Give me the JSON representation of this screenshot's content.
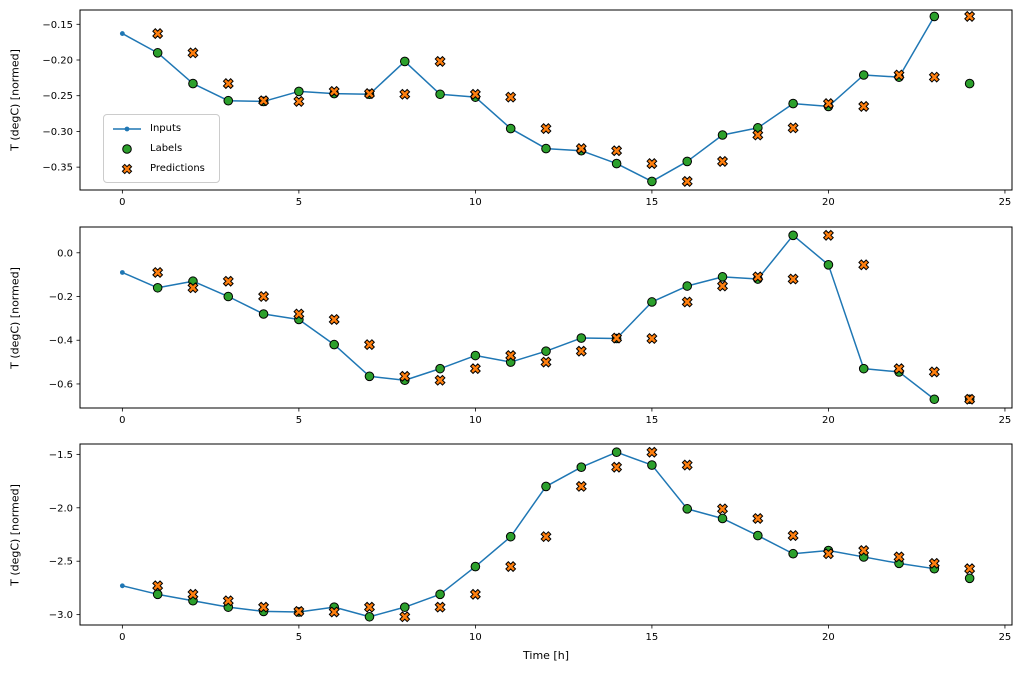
{
  "figure": {
    "xlabel": "Time [h]",
    "legend": [
      "Inputs",
      "Labels",
      "Predictions"
    ],
    "colors": {
      "inputs": "#1f77b4",
      "labels": "#2ca02c",
      "predictions": "#ff7f0e",
      "marker_edge": "#000000",
      "axes": "#000000",
      "background": "#ffffff"
    }
  },
  "chart_data": [
    {
      "type": "line+scatter",
      "ylabel": "T (degC) [normed]",
      "xlim": [
        -1.2,
        25.2
      ],
      "ylim": [
        -0.382,
        -0.13
      ],
      "xticks": [
        0,
        5,
        10,
        15,
        20,
        25
      ],
      "xtick_labels": [
        "0",
        "5",
        "10",
        "15",
        "20",
        "25"
      ],
      "yticks": [
        -0.15,
        -0.2,
        -0.25,
        -0.3,
        -0.35
      ],
      "ytick_labels": [
        "−0.15",
        "−0.20",
        "−0.25",
        "−0.30",
        "−0.35"
      ],
      "series": [
        {
          "name": "Inputs",
          "marker": "dot-line",
          "x": [
            0,
            1,
            2,
            3,
            4,
            5,
            6,
            7,
            8,
            9,
            10,
            11,
            12,
            13,
            14,
            15,
            16,
            17,
            18,
            19,
            20,
            21,
            22,
            23
          ],
          "y": [
            -0.163,
            -0.19,
            -0.233,
            -0.257,
            -0.258,
            -0.244,
            -0.247,
            -0.248,
            -0.202,
            -0.248,
            -0.252,
            -0.296,
            -0.324,
            -0.327,
            -0.345,
            -0.37,
            -0.342,
            -0.305,
            -0.295,
            -0.261,
            -0.265,
            -0.221,
            -0.224,
            -0.139
          ]
        },
        {
          "name": "Labels",
          "marker": "circle",
          "x": [
            1,
            2,
            3,
            4,
            5,
            6,
            7,
            8,
            9,
            10,
            11,
            12,
            13,
            14,
            15,
            16,
            17,
            18,
            19,
            20,
            21,
            22,
            23,
            24
          ],
          "y": [
            -0.19,
            -0.233,
            -0.257,
            -0.258,
            -0.244,
            -0.247,
            -0.248,
            -0.202,
            -0.248,
            -0.252,
            -0.296,
            -0.324,
            -0.327,
            -0.345,
            -0.37,
            -0.342,
            -0.305,
            -0.295,
            -0.261,
            -0.265,
            -0.221,
            -0.224,
            -0.139,
            -0.233
          ]
        },
        {
          "name": "Predictions",
          "marker": "X",
          "x": [
            1,
            2,
            3,
            4,
            5,
            6,
            7,
            8,
            9,
            10,
            11,
            12,
            13,
            14,
            15,
            16,
            17,
            18,
            19,
            20,
            21,
            22,
            23,
            24
          ],
          "y": [
            -0.163,
            -0.19,
            -0.233,
            -0.257,
            -0.258,
            -0.244,
            -0.247,
            -0.248,
            -0.202,
            -0.248,
            -0.252,
            -0.296,
            -0.324,
            -0.327,
            -0.345,
            -0.37,
            -0.342,
            -0.305,
            -0.295,
            -0.261,
            -0.265,
            -0.221,
            -0.224,
            -0.139
          ]
        }
      ]
    },
    {
      "type": "line+scatter",
      "ylabel": "T (degC) [normed]",
      "xlim": [
        -1.2,
        25.2
      ],
      "ylim": [
        -0.71,
        0.118
      ],
      "xticks": [
        0,
        5,
        10,
        15,
        20,
        25
      ],
      "xtick_labels": [
        "0",
        "5",
        "10",
        "15",
        "20",
        "25"
      ],
      "yticks": [
        0.0,
        -0.2,
        -0.4,
        -0.6
      ],
      "ytick_labels": [
        "0.0",
        "−0.2",
        "−0.4",
        "−0.6"
      ],
      "series": [
        {
          "name": "Inputs",
          "marker": "dot-line",
          "x": [
            0,
            1,
            2,
            3,
            4,
            5,
            6,
            7,
            8,
            9,
            10,
            11,
            12,
            13,
            14,
            15,
            16,
            17,
            18,
            19,
            20,
            21,
            22,
            23
          ],
          "y": [
            -0.09,
            -0.16,
            -0.13,
            -0.2,
            -0.28,
            -0.305,
            -0.42,
            -0.565,
            -0.583,
            -0.53,
            -0.47,
            -0.5,
            -0.45,
            -0.39,
            -0.392,
            -0.225,
            -0.152,
            -0.11,
            -0.12,
            0.08,
            -0.055,
            -0.53,
            -0.545,
            -0.67
          ]
        },
        {
          "name": "Labels",
          "marker": "circle",
          "x": [
            1,
            2,
            3,
            4,
            5,
            6,
            7,
            8,
            9,
            10,
            11,
            12,
            13,
            14,
            15,
            16,
            17,
            18,
            19,
            20,
            21,
            22,
            23,
            24
          ],
          "y": [
            -0.16,
            -0.13,
            -0.2,
            -0.28,
            -0.305,
            -0.42,
            -0.565,
            -0.583,
            -0.53,
            -0.47,
            -0.5,
            -0.45,
            -0.39,
            -0.392,
            -0.225,
            -0.152,
            -0.11,
            -0.12,
            0.08,
            -0.055,
            -0.53,
            -0.545,
            -0.67,
            -0.67
          ]
        },
        {
          "name": "Predictions",
          "marker": "X",
          "x": [
            1,
            2,
            3,
            4,
            5,
            6,
            7,
            8,
            9,
            10,
            11,
            12,
            13,
            14,
            15,
            16,
            17,
            18,
            19,
            20,
            21,
            22,
            23,
            24
          ],
          "y": [
            -0.09,
            -0.16,
            -0.13,
            -0.2,
            -0.28,
            -0.305,
            -0.42,
            -0.565,
            -0.583,
            -0.53,
            -0.47,
            -0.5,
            -0.45,
            -0.39,
            -0.392,
            -0.225,
            -0.152,
            -0.11,
            -0.12,
            0.08,
            -0.055,
            -0.53,
            -0.545,
            -0.67
          ]
        }
      ]
    },
    {
      "type": "line+scatter",
      "ylabel": "T (degC) [normed]",
      "xlim": [
        -1.2,
        25.2
      ],
      "ylim": [
        -3.097,
        -1.403
      ],
      "xticks": [
        0,
        5,
        10,
        15,
        20,
        25
      ],
      "xtick_labels": [
        "0",
        "5",
        "10",
        "15",
        "20",
        "25"
      ],
      "yticks": [
        -1.5,
        -2.0,
        -2.5,
        -3.0
      ],
      "ytick_labels": [
        "−1.5",
        "−2.0",
        "−2.5",
        "−3.0"
      ],
      "series": [
        {
          "name": "Inputs",
          "marker": "dot-line",
          "x": [
            0,
            1,
            2,
            3,
            4,
            5,
            6,
            7,
            8,
            9,
            10,
            11,
            12,
            13,
            14,
            15,
            16,
            17,
            18,
            19,
            20,
            21,
            22,
            23
          ],
          "y": [
            -2.73,
            -2.81,
            -2.87,
            -2.93,
            -2.97,
            -2.975,
            -2.93,
            -3.02,
            -2.93,
            -2.81,
            -2.55,
            -2.27,
            -1.8,
            -1.62,
            -1.48,
            -1.6,
            -2.01,
            -2.1,
            -2.26,
            -2.43,
            -2.4,
            -2.46,
            -2.52,
            -2.57
          ]
        },
        {
          "name": "Labels",
          "marker": "circle",
          "x": [
            1,
            2,
            3,
            4,
            5,
            6,
            7,
            8,
            9,
            10,
            11,
            12,
            13,
            14,
            15,
            16,
            17,
            18,
            19,
            20,
            21,
            22,
            23,
            24
          ],
          "y": [
            -2.81,
            -2.87,
            -2.93,
            -2.97,
            -2.975,
            -2.93,
            -3.02,
            -2.93,
            -2.81,
            -2.55,
            -2.27,
            -1.8,
            -1.62,
            -1.48,
            -1.6,
            -2.01,
            -2.1,
            -2.26,
            -2.43,
            -2.4,
            -2.46,
            -2.52,
            -2.57,
            -2.66
          ]
        },
        {
          "name": "Predictions",
          "marker": "X",
          "x": [
            1,
            2,
            3,
            4,
            5,
            6,
            7,
            8,
            9,
            10,
            11,
            12,
            13,
            14,
            15,
            16,
            17,
            18,
            19,
            20,
            21,
            22,
            23,
            24
          ],
          "y": [
            -2.73,
            -2.81,
            -2.87,
            -2.93,
            -2.97,
            -2.975,
            -2.93,
            -3.02,
            -2.93,
            -2.81,
            -2.55,
            -2.27,
            -1.8,
            -1.62,
            -1.48,
            -1.6,
            -2.01,
            -2.1,
            -2.26,
            -2.43,
            -2.4,
            -2.46,
            -2.52,
            -2.57
          ]
        }
      ]
    }
  ]
}
